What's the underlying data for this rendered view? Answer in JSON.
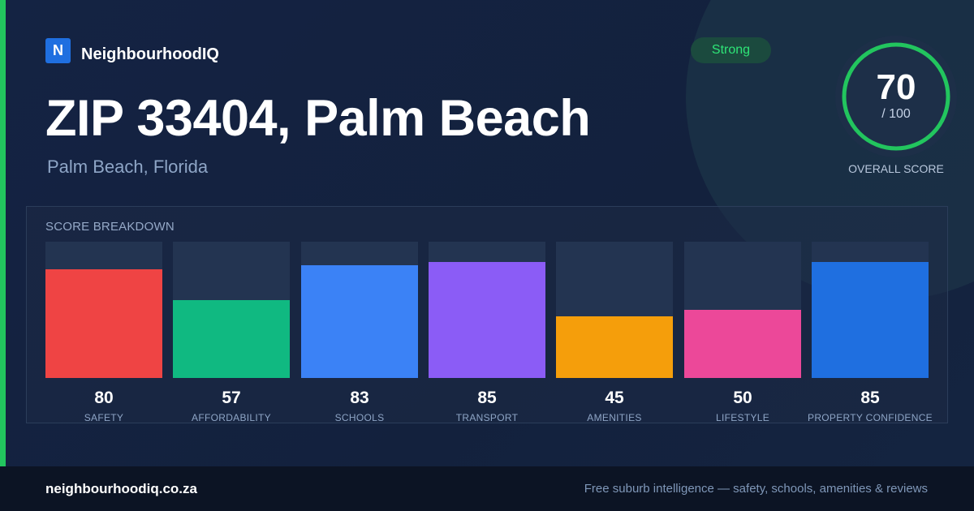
{
  "brand": {
    "logo_letter": "N",
    "name": "NeighbourhoodIQ"
  },
  "header": {
    "title": "ZIP 33404, Palm Beach",
    "subtitle": "Palm Beach, Florida",
    "badge": "Strong"
  },
  "overall": {
    "score": "70",
    "max_label": "/ 100",
    "label": "OVERALL SCORE",
    "fraction": 0.7,
    "ring_color": "#22c55e"
  },
  "chart_data": {
    "type": "bar",
    "title": "SCORE BREAKDOWN",
    "ylim": [
      0,
      100
    ],
    "categories": [
      "SAFETY",
      "AFFORDABILITY",
      "SCHOOLS",
      "TRANSPORT",
      "AMENITIES",
      "LIFESTYLE",
      "PROPERTY CONFIDENCE"
    ],
    "values": [
      80,
      57,
      83,
      85,
      45,
      50,
      85
    ],
    "colors": [
      "#ef4444",
      "#10b981",
      "#3b82f6",
      "#8b5cf6",
      "#f59e0b",
      "#ec4899",
      "#1f6fe0"
    ]
  },
  "footer": {
    "url": "neighbourhoodiq.co.za",
    "tagline": "Free suburb intelligence — safety, schools, amenities & reviews"
  }
}
